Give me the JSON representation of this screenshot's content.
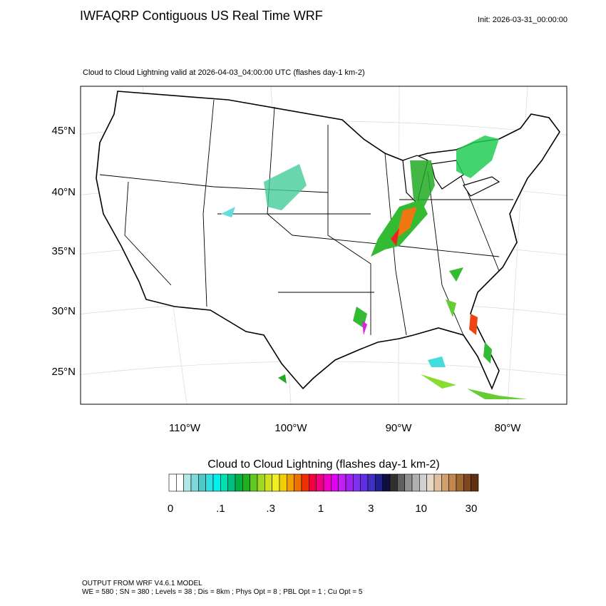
{
  "header": {
    "title": "IWFAQRP Contiguous US Real Time WRF",
    "init": "Init: 2026-03-31_00:00:00"
  },
  "map": {
    "subtitle": "Cloud to Cloud Lightning valid at 2026-04-03_04:00:00 UTC   (flashes day-1 km-2)",
    "lat_labels": [
      "45°N",
      "40°N",
      "35°N",
      "30°N",
      "25°N"
    ],
    "lon_labels": [
      "110°W",
      "100°W",
      "90°W",
      "80°W"
    ]
  },
  "colorbar": {
    "title": "Cloud to Cloud Lightning  (flashes day-1 km-2)",
    "labels": [
      "0",
      ".1",
      ".3",
      "1",
      "3",
      "10",
      "30"
    ]
  },
  "footer": {
    "lines": [
      "OUTPUT FROM WRF V4.6.1 MODEL",
      "WE = 580 ; SN = 380 ; Levels = 38 ; Dis = 8km ; Phys Opt = 8 ; PBL Opt = 1 ; Cu Opt = 5"
    ]
  }
}
